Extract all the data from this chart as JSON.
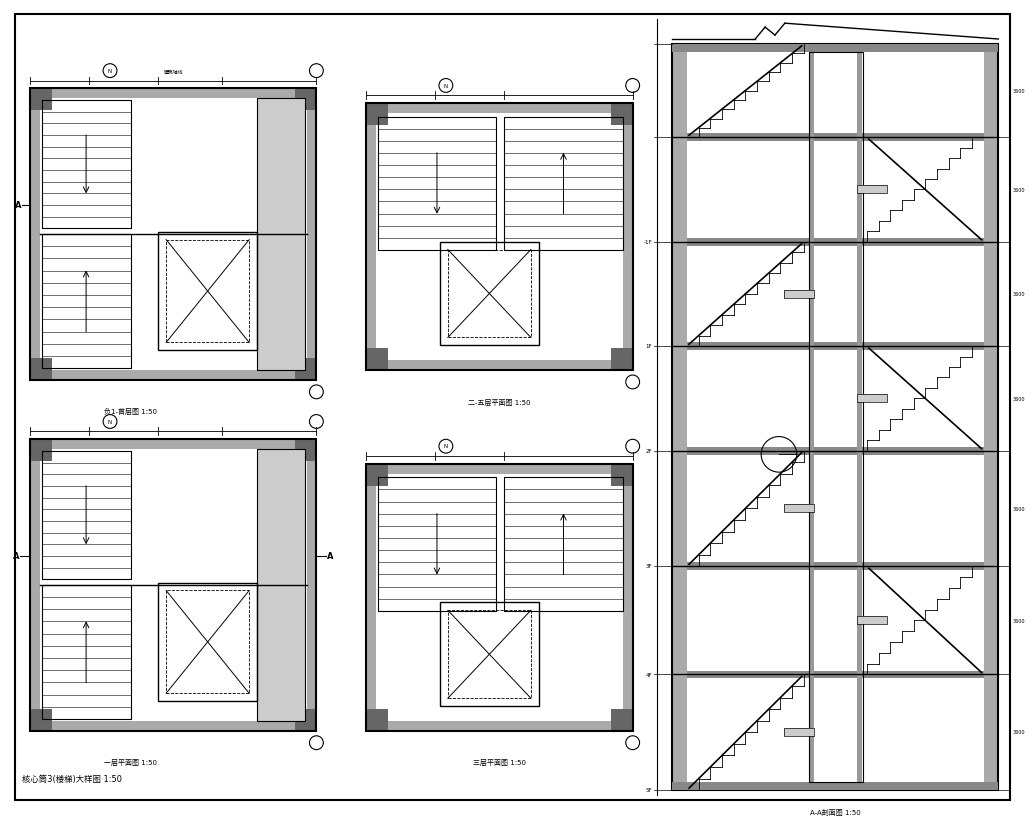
{
  "title": "核心筒3(楼梯)大样图 1:50",
  "background_color": "#ffffff",
  "line_color": "#000000",
  "fig_width": 10.17,
  "fig_height": 8.05,
  "labels": {
    "plan1": "负1-首层图 1:50",
    "plan2": "二-五层平面图 1:50",
    "plan3": "一层平面图 1:50",
    "plan4": "三层平面图 1:50",
    "section": "A-A剖面图 1:50",
    "bottom": "核心筒3(楼梯)大样图 1:50"
  }
}
